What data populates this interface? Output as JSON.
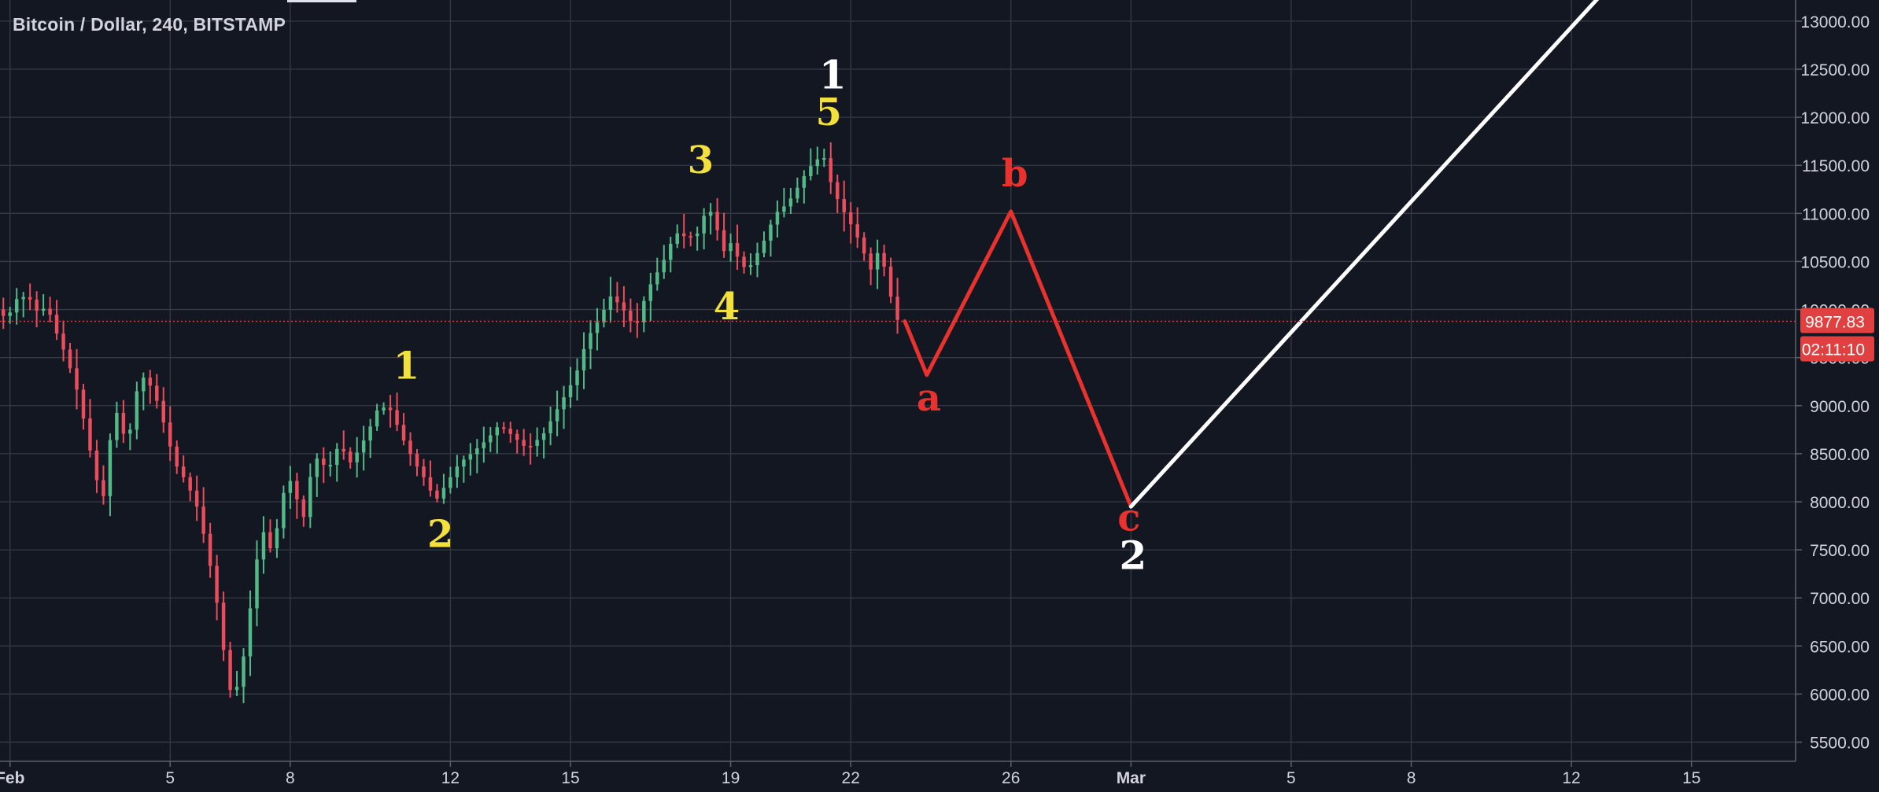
{
  "chart_data": {
    "type": "candlestick",
    "title": "Bitcoin / Dollar, 240, BITSTAMP",
    "colors": {
      "background": "#131722",
      "grid": "#363a45",
      "text": "#d1d4dc",
      "bull": "#53b987",
      "bear": "#eb4d5c",
      "wave_minor": "#f2e03c",
      "wave_major": "#ffffff",
      "correction": "#e8322e",
      "projection": "#ffffff",
      "price_line": "#e04040"
    },
    "y_axis": {
      "range": [
        5300,
        13220
      ],
      "ticks": [
        "5500.00",
        "6000.00",
        "6500.00",
        "7000.00",
        "7500.00",
        "8000.00",
        "8500.00",
        "9000.00",
        "9500.00",
        "10000.00",
        "10500.00",
        "11000.00",
        "11500.00",
        "12000.00",
        "12500.00",
        "13000.00"
      ],
      "grid": true,
      "side": "right"
    },
    "x_axis": {
      "range_days": [
        -0.25,
        44.6
      ],
      "ticks": [
        {
          "label": "Feb",
          "day": 0,
          "bold": true
        },
        {
          "label": "5",
          "day": 4
        },
        {
          "label": "8",
          "day": 7
        },
        {
          "label": "12",
          "day": 11
        },
        {
          "label": "15",
          "day": 14
        },
        {
          "label": "19",
          "day": 18
        },
        {
          "label": "22",
          "day": 21
        },
        {
          "label": "26",
          "day": 25
        },
        {
          "label": "Mar",
          "day": 28,
          "bold": true
        },
        {
          "label": "5",
          "day": 32
        },
        {
          "label": "8",
          "day": 35
        },
        {
          "label": "12",
          "day": 39
        },
        {
          "label": "15",
          "day": 42
        }
      ]
    },
    "last_price": {
      "value": "9877.83",
      "level": 9877.83,
      "countdown": "02:11:10"
    },
    "price_path": [
      [
        -0.25,
        10000
      ],
      [
        0,
        9900
      ],
      [
        0.3,
        10150
      ],
      [
        0.6,
        10100
      ],
      [
        0.8,
        9950
      ],
      [
        1.0,
        10050
      ],
      [
        1.2,
        9800
      ],
      [
        1.5,
        9500
      ],
      [
        1.8,
        9100
      ],
      [
        2.0,
        8700
      ],
      [
        2.2,
        8300
      ],
      [
        2.4,
        8000
      ],
      [
        2.6,
        8700
      ],
      [
        2.8,
        9000
      ],
      [
        3.0,
        8500
      ],
      [
        3.2,
        9100
      ],
      [
        3.4,
        9300
      ],
      [
        3.6,
        9200
      ],
      [
        3.8,
        9000
      ],
      [
        4.0,
        8700
      ],
      [
        4.2,
        8400
      ],
      [
        4.5,
        8200
      ],
      [
        4.8,
        7900
      ],
      [
        5.0,
        7500
      ],
      [
        5.2,
        7100
      ],
      [
        5.4,
        6500
      ],
      [
        5.6,
        6000
      ],
      [
        5.8,
        6100
      ],
      [
        6.0,
        6600
      ],
      [
        6.2,
        7300
      ],
      [
        6.4,
        7700
      ],
      [
        6.6,
        7500
      ],
      [
        6.8,
        7800
      ],
      [
        7.0,
        8300
      ],
      [
        7.2,
        8100
      ],
      [
        7.4,
        7800
      ],
      [
        7.6,
        8300
      ],
      [
        7.8,
        8500
      ],
      [
        8.0,
        8300
      ],
      [
        8.3,
        8600
      ],
      [
        8.6,
        8400
      ],
      [
        9.0,
        8700
      ],
      [
        9.3,
        9000
      ],
      [
        9.6,
        8950
      ],
      [
        9.9,
        8650
      ],
      [
        10.2,
        8400
      ],
      [
        10.5,
        8200
      ],
      [
        10.7,
        8000
      ],
      [
        11.0,
        8200
      ],
      [
        11.3,
        8400
      ],
      [
        11.6,
        8500
      ],
      [
        12.0,
        8650
      ],
      [
        12.3,
        8800
      ],
      [
        12.6,
        8700
      ],
      [
        13.0,
        8550
      ],
      [
        13.4,
        8700
      ],
      [
        13.8,
        9000
      ],
      [
        14.2,
        9300
      ],
      [
        14.5,
        9700
      ],
      [
        14.8,
        9900
      ],
      [
        15.1,
        10150
      ],
      [
        15.4,
        10000
      ],
      [
        15.7,
        9800
      ],
      [
        16.0,
        10200
      ],
      [
        16.4,
        10500
      ],
      [
        16.7,
        10800
      ],
      [
        17.0,
        10750
      ],
      [
        17.3,
        10800
      ],
      [
        17.5,
        11100
      ],
      [
        17.7,
        10900
      ],
      [
        17.9,
        10600
      ],
      [
        18.1,
        10700
      ],
      [
        18.3,
        10500
      ],
      [
        18.5,
        10400
      ],
      [
        18.7,
        10550
      ],
      [
        18.9,
        10700
      ],
      [
        19.2,
        11000
      ],
      [
        19.5,
        11100
      ],
      [
        19.8,
        11300
      ],
      [
        20.0,
        11450
      ],
      [
        20.2,
        11550
      ],
      [
        20.4,
        11600
      ],
      [
        20.6,
        11300
      ],
      [
        20.8,
        11100
      ],
      [
        21.0,
        10950
      ],
      [
        21.2,
        10800
      ],
      [
        21.4,
        10600
      ],
      [
        21.6,
        10400
      ],
      [
        21.8,
        10650
      ],
      [
        22.0,
        10300
      ],
      [
        22.2,
        9900
      ],
      [
        22.35,
        9877.83
      ]
    ],
    "overlays": [
      {
        "name": "correction-abc",
        "color": "#e8322e",
        "points": [
          [
            22.35,
            9877.83
          ],
          [
            22.9,
            9320
          ],
          [
            25.0,
            11020
          ],
          [
            28.0,
            7950
          ]
        ]
      },
      {
        "name": "projection",
        "color": "#ffffff",
        "points": [
          [
            28.0,
            7950
          ],
          [
            39.8,
            13300
          ]
        ]
      }
    ],
    "wave_labels": [
      {
        "text": "1",
        "day": 9.9,
        "price": 9280,
        "color": "#f2e03c",
        "size": 48
      },
      {
        "text": "2",
        "day": 10.75,
        "price": 7530,
        "color": "#f2e03c",
        "size": 48
      },
      {
        "text": "3",
        "day": 17.25,
        "price": 11420,
        "color": "#f2e03c",
        "size": 48
      },
      {
        "text": "4",
        "day": 17.9,
        "price": 9900,
        "color": "#f2e03c",
        "size": 48
      },
      {
        "text": "5",
        "day": 20.45,
        "price": 11920,
        "color": "#f2e03c",
        "size": 48
      },
      {
        "text": "1",
        "day": 20.55,
        "price": 12300,
        "color": "#ffffff",
        "size": 50
      },
      {
        "text": "a",
        "day": 22.95,
        "price": 8950,
        "color": "#e8322e",
        "size": 48
      },
      {
        "text": "b",
        "day": 25.1,
        "price": 11280,
        "color": "#e8322e",
        "size": 48
      },
      {
        "text": "c",
        "day": 27.95,
        "price": 7700,
        "color": "#e8322e",
        "size": 48
      },
      {
        "text": "2",
        "day": 28.05,
        "price": 7300,
        "color": "#ffffff",
        "size": 50
      }
    ]
  }
}
